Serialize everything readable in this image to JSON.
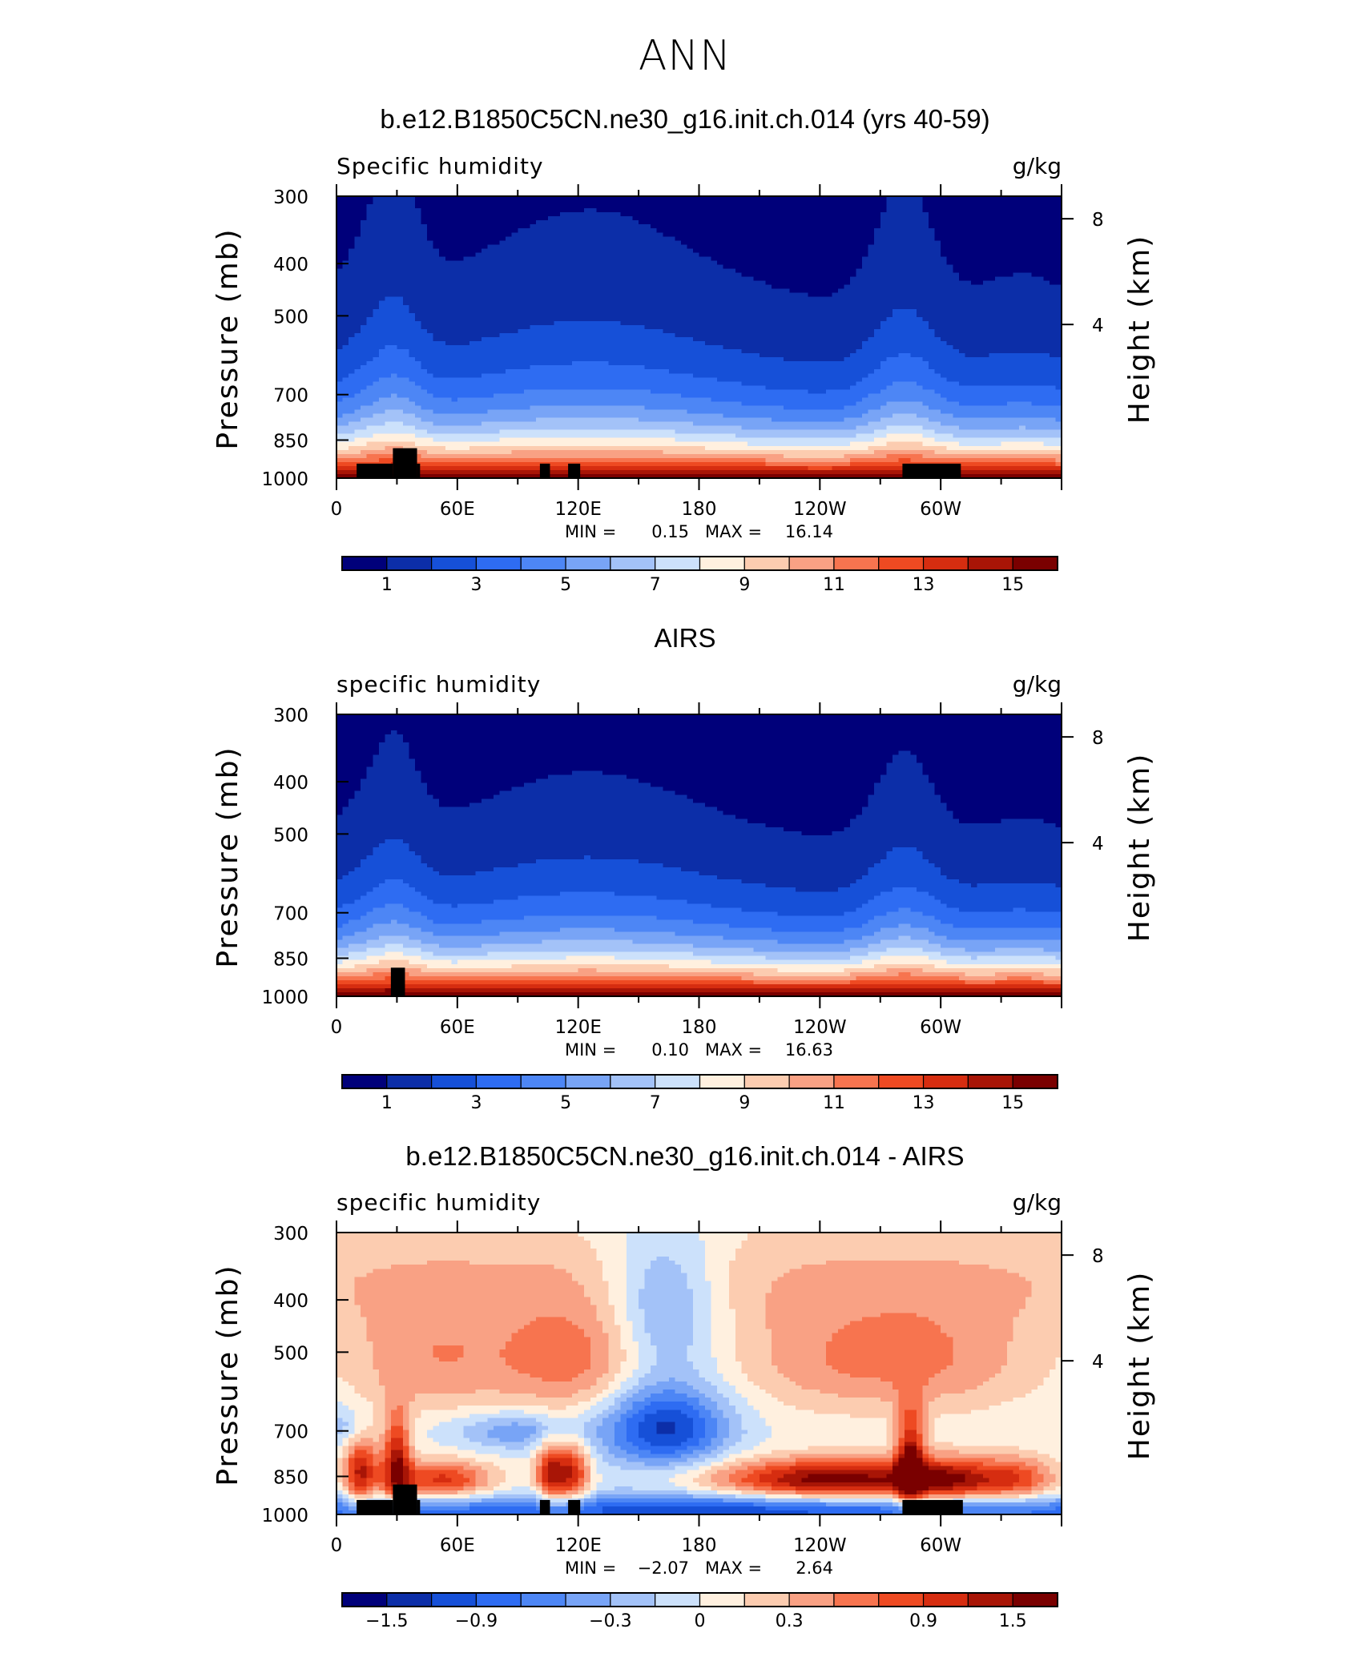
{
  "main_title": "ANN",
  "chart_data": [
    {
      "type": "heatmap",
      "title": "b.e12.B1850C5CN.ne30_g16.init.ch.014 (yrs 40-59)",
      "left_label": "Specific humidity",
      "right_label": "g/kg",
      "xlabel": "",
      "ylabel": "Pressure (mb)",
      "ylabel_right": "Height (km)",
      "x_ticks": [
        "0",
        "60E",
        "120E",
        "180",
        "120W",
        "60W"
      ],
      "x_range": [
        0,
        360
      ],
      "y_ticks": [
        "300",
        "400",
        "500",
        "700",
        "850",
        "1000"
      ],
      "y_range_mb": [
        300,
        1000
      ],
      "y_scale": "log",
      "right_ticks": [
        "8",
        "4"
      ],
      "stats": {
        "min_label": "MIN =",
        "min": "0.15",
        "max_label": "MAX =",
        "max": "16.14"
      },
      "colorbar": {
        "levels": [
          1,
          2,
          3,
          4,
          5,
          6,
          7,
          8,
          9,
          10,
          11,
          12,
          13,
          14,
          15
        ],
        "labels": [
          "1",
          "3",
          "5",
          "7",
          "9",
          "11",
          "13",
          "15"
        ]
      },
      "fields": {
        "kind": "mean",
        "surface_scale": 16.2,
        "top_scale": 0.3,
        "scale_height": 165,
        "regional": 1.0
      }
    },
    {
      "type": "heatmap",
      "title": "AIRS",
      "left_label": "specific humidity",
      "right_label": "g/kg",
      "xlabel": "",
      "ylabel": "Pressure (mb)",
      "ylabel_right": "Height (km)",
      "x_ticks": [
        "0",
        "60E",
        "120E",
        "180",
        "120W",
        "60W"
      ],
      "x_range": [
        0,
        360
      ],
      "y_ticks": [
        "300",
        "400",
        "500",
        "700",
        "850",
        "1000"
      ],
      "y_range_mb": [
        300,
        1000
      ],
      "y_scale": "log",
      "right_ticks": [
        "8",
        "4"
      ],
      "stats": {
        "min_label": "MIN =",
        "min": "0.10",
        "max_label": "MAX =",
        "max": "16.63"
      },
      "colorbar": {
        "levels": [
          1,
          2,
          3,
          4,
          5,
          6,
          7,
          8,
          9,
          10,
          11,
          12,
          13,
          14,
          15
        ],
        "labels": [
          "1",
          "3",
          "5",
          "7",
          "9",
          "11",
          "13",
          "15"
        ]
      },
      "fields": {
        "kind": "mean",
        "surface_scale": 16.6,
        "top_scale": 0.25,
        "scale_height": 155,
        "regional": 0.9
      }
    },
    {
      "type": "heatmap",
      "title": "b.e12.B1850C5CN.ne30_g16.init.ch.014 - AIRS",
      "left_label": "specific humidity",
      "right_label": "g/kg",
      "xlabel": "",
      "ylabel": "Pressure (mb)",
      "ylabel_right": "Height (km)",
      "x_ticks": [
        "0",
        "60E",
        "120E",
        "180",
        "120W",
        "60W"
      ],
      "x_range": [
        0,
        360
      ],
      "y_ticks": [
        "300",
        "400",
        "500",
        "700",
        "850",
        "1000"
      ],
      "y_range_mb": [
        300,
        1000
      ],
      "y_scale": "log",
      "right_ticks": [
        "8",
        "4"
      ],
      "stats": {
        "min_label": "MIN =",
        "min": "−2.07",
        "max_label": "MAX =",
        "max": "2.64"
      },
      "colorbar": {
        "levels": [
          -2.1,
          -1.8,
          -1.5,
          -1.2,
          -0.9,
          -0.6,
          -0.3,
          0,
          0.3,
          0.6,
          0.9,
          1.2,
          1.5,
          1.8,
          2.1
        ],
        "labels": [
          "−1.5",
          "−0.9",
          "−0.3",
          "0",
          "0.3",
          "0.9",
          "1.5"
        ]
      },
      "fields": {
        "kind": "diff"
      }
    }
  ],
  "colors": {
    "palette": [
      "#00007a",
      "#0c2ea8",
      "#1650d8",
      "#2e6cf2",
      "#4d86f5",
      "#78a4f6",
      "#a3c2f8",
      "#cce1fb",
      "#fff0df",
      "#fcccb0",
      "#f9a184",
      "#f7744f",
      "#ee4a22",
      "#d62d10",
      "#a81506",
      "#7a0000"
    ],
    "terrain": "#000000"
  }
}
